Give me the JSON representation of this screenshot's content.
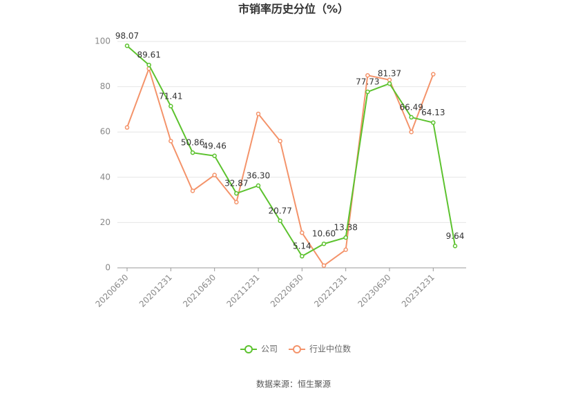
{
  "chart_data": {
    "type": "line",
    "title": "市销率历史分位（%）",
    "categories": [
      "20200630",
      null,
      "20201231",
      null,
      "20210630",
      null,
      "20211231",
      null,
      "20220630",
      null,
      "20221231",
      null,
      "20230630",
      null,
      "20231231",
      null
    ],
    "series": [
      {
        "name": "公司",
        "color": "#5cc22e",
        "values": [
          98.07,
          89.61,
          71.41,
          50.86,
          49.46,
          32.87,
          36.3,
          20.77,
          5.14,
          10.6,
          13.38,
          77.73,
          81.37,
          66.49,
          64.13,
          9.64
        ],
        "value_labels": [
          "98.07",
          "89.61",
          "71.41",
          "50.86",
          "49.46",
          "32.87",
          "36.30",
          "20.77",
          "5.14",
          "10.60",
          "13.38",
          "77.73",
          "81.37",
          "66.49",
          "64.13",
          "9.64"
        ]
      },
      {
        "name": "行业中位数",
        "color": "#f4936a",
        "values": [
          62,
          88,
          56,
          34,
          41,
          29,
          68,
          56,
          15.5,
          1,
          8,
          85,
          83,
          60,
          85.5,
          null
        ]
      }
    ],
    "ylim": [
      0,
      100
    ],
    "yticks": [
      0,
      20,
      40,
      60,
      80,
      100
    ],
    "grid": true,
    "source": "数据来源：恒生聚源"
  }
}
